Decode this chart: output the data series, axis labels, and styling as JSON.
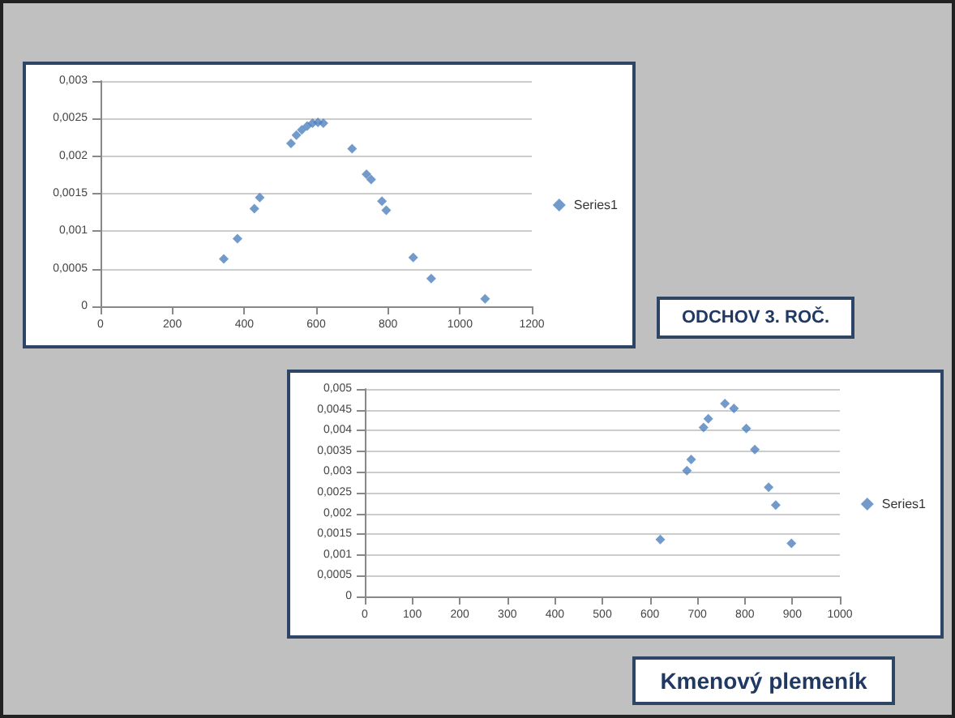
{
  "chart_data": [
    {
      "type": "scatter",
      "annotations": [
        "ODCHOV 3. ROČ."
      ],
      "marker": "diamond",
      "grid": "y",
      "legend": "right",
      "xlim": [
        0,
        1200
      ],
      "xticks": [
        0,
        200,
        400,
        600,
        800,
        1000,
        1200
      ],
      "ylim": [
        0,
        0.003
      ],
      "yticks": [
        {
          "value": 0,
          "label": "0"
        },
        {
          "value": 0.0005,
          "label": "0,0005"
        },
        {
          "value": 0.001,
          "label": "0,001"
        },
        {
          "value": 0.0015,
          "label": "0,0015"
        },
        {
          "value": 0.002,
          "label": "0,002"
        },
        {
          "value": 0.0025,
          "label": "0,0025"
        },
        {
          "value": 0.003,
          "label": "0,003"
        }
      ],
      "series": [
        {
          "name": "Series1",
          "color": "#4f81bd",
          "x": [
            343,
            381,
            428,
            443,
            530,
            545,
            560,
            575,
            590,
            605,
            620,
            700,
            740,
            753,
            783,
            795,
            870,
            920,
            1070
          ],
          "values": [
            0.00063,
            0.0009,
            0.0013,
            0.00145,
            0.00217,
            0.00228,
            0.00235,
            0.0024,
            0.00244,
            0.00245,
            0.00244,
            0.0021,
            0.00176,
            0.00169,
            0.0014,
            0.00128,
            0.00065,
            0.00037,
            0.0001
          ]
        }
      ]
    },
    {
      "type": "scatter",
      "annotations": [
        "Kmenový plemeník"
      ],
      "marker": "diamond",
      "grid": "y",
      "legend": "right",
      "xlim": [
        0,
        1000
      ],
      "xticks": [
        0,
        100,
        200,
        300,
        400,
        500,
        600,
        700,
        800,
        900,
        1000
      ],
      "ylim": [
        0,
        0.005
      ],
      "yticks": [
        {
          "value": 0,
          "label": "0"
        },
        {
          "value": 0.0005,
          "label": "0,0005"
        },
        {
          "value": 0.001,
          "label": "0,001"
        },
        {
          "value": 0.0015,
          "label": "0,0015"
        },
        {
          "value": 0.002,
          "label": "0,002"
        },
        {
          "value": 0.0025,
          "label": "0,0025"
        },
        {
          "value": 0.003,
          "label": "0,003"
        },
        {
          "value": 0.0035,
          "label": "0,0035"
        },
        {
          "value": 0.004,
          "label": "0,004"
        },
        {
          "value": 0.0045,
          "label": "0,0045"
        },
        {
          "value": 0.005,
          "label": "0,005"
        }
      ],
      "series": [
        {
          "name": "Series1",
          "color": "#4f81bd",
          "x": [
            622,
            678,
            687,
            713,
            723,
            758,
            777,
            803,
            821,
            850,
            865,
            898
          ],
          "values": [
            0.00137,
            0.00303,
            0.0033,
            0.00407,
            0.00428,
            0.00465,
            0.00453,
            0.00405,
            0.00354,
            0.00263,
            0.0022,
            0.00128
          ]
        }
      ]
    }
  ]
}
